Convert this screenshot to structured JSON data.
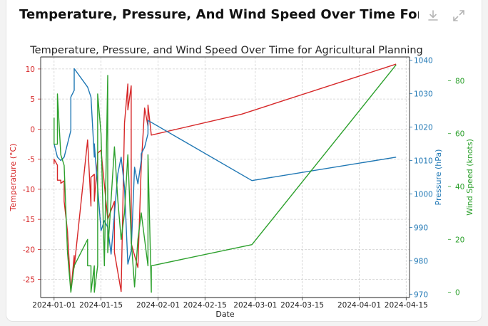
{
  "header": {
    "title": "Temperature, Pressure, And Wind Speed Over Time For Agricult...",
    "download_icon": "download-icon",
    "expand_icon": "expand-icon"
  },
  "colors": {
    "temperature": "#d62728",
    "pressure": "#1f77b4",
    "wind": "#2ca02c"
  },
  "chart_data": {
    "type": "line",
    "title": "Temperature, Pressure, and Wind Speed Over Time for Agricultural Planning",
    "xlabel": "Date",
    "x_ticks": [
      "2024-01-01",
      "2024-01-15",
      "2024-02-01",
      "2024-02-15",
      "2024-03-01",
      "2024-03-15",
      "2024-04-01",
      "2024-04-15"
    ],
    "xlim": [
      "2023-12-28",
      "2024-04-16"
    ],
    "grid": true,
    "axes": {
      "temperature": {
        "label": "Temperature (°C)",
        "side": "left",
        "ylim": [
          -28,
          12
        ],
        "ticks": [
          10,
          5,
          0,
          -5,
          -10,
          -15,
          -20,
          -25
        ]
      },
      "pressure": {
        "label": "Pressure (hPa)",
        "side": "right",
        "ylim": [
          969,
          1041
        ],
        "ticks": [
          1040,
          1030,
          1020,
          1010,
          1000,
          990,
          980,
          970
        ]
      },
      "wind": {
        "label": "Wind Speed (knots)",
        "side": "right-outer",
        "ylim": [
          -2,
          89
        ],
        "ticks": [
          80,
          60,
          40,
          20,
          0
        ]
      }
    },
    "series": [
      {
        "name": "Temperature (°C)",
        "axis": "temperature",
        "points": [
          [
            "2024-01-01",
            -5.8
          ],
          [
            "2024-01-01",
            -5.0
          ],
          [
            "2024-01-02",
            -6.0
          ],
          [
            "2024-01-02",
            -8.5
          ],
          [
            "2024-01-03",
            -8.5
          ],
          [
            "2024-01-03",
            -9.0
          ],
          [
            "2024-01-04",
            -8.6
          ],
          [
            "2024-01-04",
            -12.0
          ],
          [
            "2024-01-05",
            -17.0
          ],
          [
            "2024-01-06",
            -27.0
          ],
          [
            "2024-01-07",
            -21.0
          ],
          [
            "2024-01-07",
            -23.0
          ],
          [
            "2024-01-11",
            -1.8
          ],
          [
            "2024-01-12",
            -12.8
          ],
          [
            "2024-01-12",
            -8.0
          ],
          [
            "2024-01-13",
            -7.5
          ],
          [
            "2024-01-13",
            -12.0
          ],
          [
            "2024-01-14",
            -5.0
          ],
          [
            "2024-01-14",
            -4.0
          ],
          [
            "2024-01-15",
            -3.5
          ],
          [
            "2024-01-17",
            -15.0
          ],
          [
            "2024-01-19",
            -12.0
          ],
          [
            "2024-01-19",
            -20.5
          ],
          [
            "2024-01-21",
            -27.0
          ],
          [
            "2024-01-22",
            1.0
          ],
          [
            "2024-01-23",
            7.5
          ],
          [
            "2024-01-23",
            3.2
          ],
          [
            "2024-01-24",
            7.2
          ],
          [
            "2024-01-24",
            -19.0
          ],
          [
            "2024-01-26",
            -23.0
          ],
          [
            "2024-01-27",
            -6.0
          ],
          [
            "2024-01-28",
            3.5
          ],
          [
            "2024-01-29",
            0.5
          ],
          [
            "2024-01-29",
            4.0
          ],
          [
            "2024-01-30",
            -1.0
          ],
          [
            "2024-02-26",
            2.5
          ],
          [
            "2024-04-12",
            10.8
          ]
        ]
      },
      {
        "name": "Pressure (hPa)",
        "axis": "pressure",
        "points": [
          [
            "2024-01-01",
            1015
          ],
          [
            "2024-01-02",
            1011
          ],
          [
            "2024-01-03",
            1010
          ],
          [
            "2024-01-04",
            1011
          ],
          [
            "2024-01-06",
            1019
          ],
          [
            "2024-01-06",
            1029
          ],
          [
            "2024-01-07",
            1031
          ],
          [
            "2024-01-07",
            1037.5
          ],
          [
            "2024-01-11",
            1032
          ],
          [
            "2024-01-12",
            1029
          ],
          [
            "2024-01-13",
            1011
          ],
          [
            "2024-01-13",
            1015
          ],
          [
            "2024-01-15",
            989
          ],
          [
            "2024-01-16",
            992
          ],
          [
            "2024-01-17",
            990
          ],
          [
            "2024-01-18",
            982
          ],
          [
            "2024-01-20",
            1006
          ],
          [
            "2024-01-21",
            1011
          ],
          [
            "2024-01-22",
            1002
          ],
          [
            "2024-01-23",
            979
          ],
          [
            "2024-01-24",
            983
          ],
          [
            "2024-01-25",
            1008
          ],
          [
            "2024-01-26",
            1003
          ],
          [
            "2024-01-27",
            1010
          ],
          [
            "2024-01-27",
            1012
          ],
          [
            "2024-01-28",
            1014
          ],
          [
            "2024-01-29",
            1018
          ],
          [
            "2024-01-29",
            1022
          ],
          [
            "2024-02-29",
            1004
          ],
          [
            "2024-04-12",
            1011
          ]
        ]
      },
      {
        "name": "Wind Speed (knots)",
        "axis": "wind",
        "points": [
          [
            "2024-01-01",
            66
          ],
          [
            "2024-01-01",
            56
          ],
          [
            "2024-01-02",
            56
          ],
          [
            "2024-01-02",
            75
          ],
          [
            "2024-01-03",
            52
          ],
          [
            "2024-01-04",
            48
          ],
          [
            "2024-01-05",
            15
          ],
          [
            "2024-01-06",
            0
          ],
          [
            "2024-01-07",
            10
          ],
          [
            "2024-01-11",
            20
          ],
          [
            "2024-01-11",
            10
          ],
          [
            "2024-01-12",
            10
          ],
          [
            "2024-01-12",
            0
          ],
          [
            "2024-01-13",
            10
          ],
          [
            "2024-01-13",
            0
          ],
          [
            "2024-01-14",
            10
          ],
          [
            "2024-01-14",
            75
          ],
          [
            "2024-01-15",
            60
          ],
          [
            "2024-01-16",
            10
          ],
          [
            "2024-01-17",
            82
          ],
          [
            "2024-01-17",
            15
          ],
          [
            "2024-01-19",
            55
          ],
          [
            "2024-01-20",
            35
          ],
          [
            "2024-01-21",
            20
          ],
          [
            "2024-01-22",
            30
          ],
          [
            "2024-01-23",
            52
          ],
          [
            "2024-01-24",
            20
          ],
          [
            "2024-01-25",
            2
          ],
          [
            "2024-01-26",
            20
          ],
          [
            "2024-01-27",
            30
          ],
          [
            "2024-01-28",
            20
          ],
          [
            "2024-01-29",
            10
          ],
          [
            "2024-01-29",
            52
          ],
          [
            "2024-01-30",
            0
          ],
          [
            "2024-01-30",
            10
          ],
          [
            "2024-02-29",
            18
          ],
          [
            "2024-04-12",
            86
          ]
        ]
      }
    ]
  }
}
